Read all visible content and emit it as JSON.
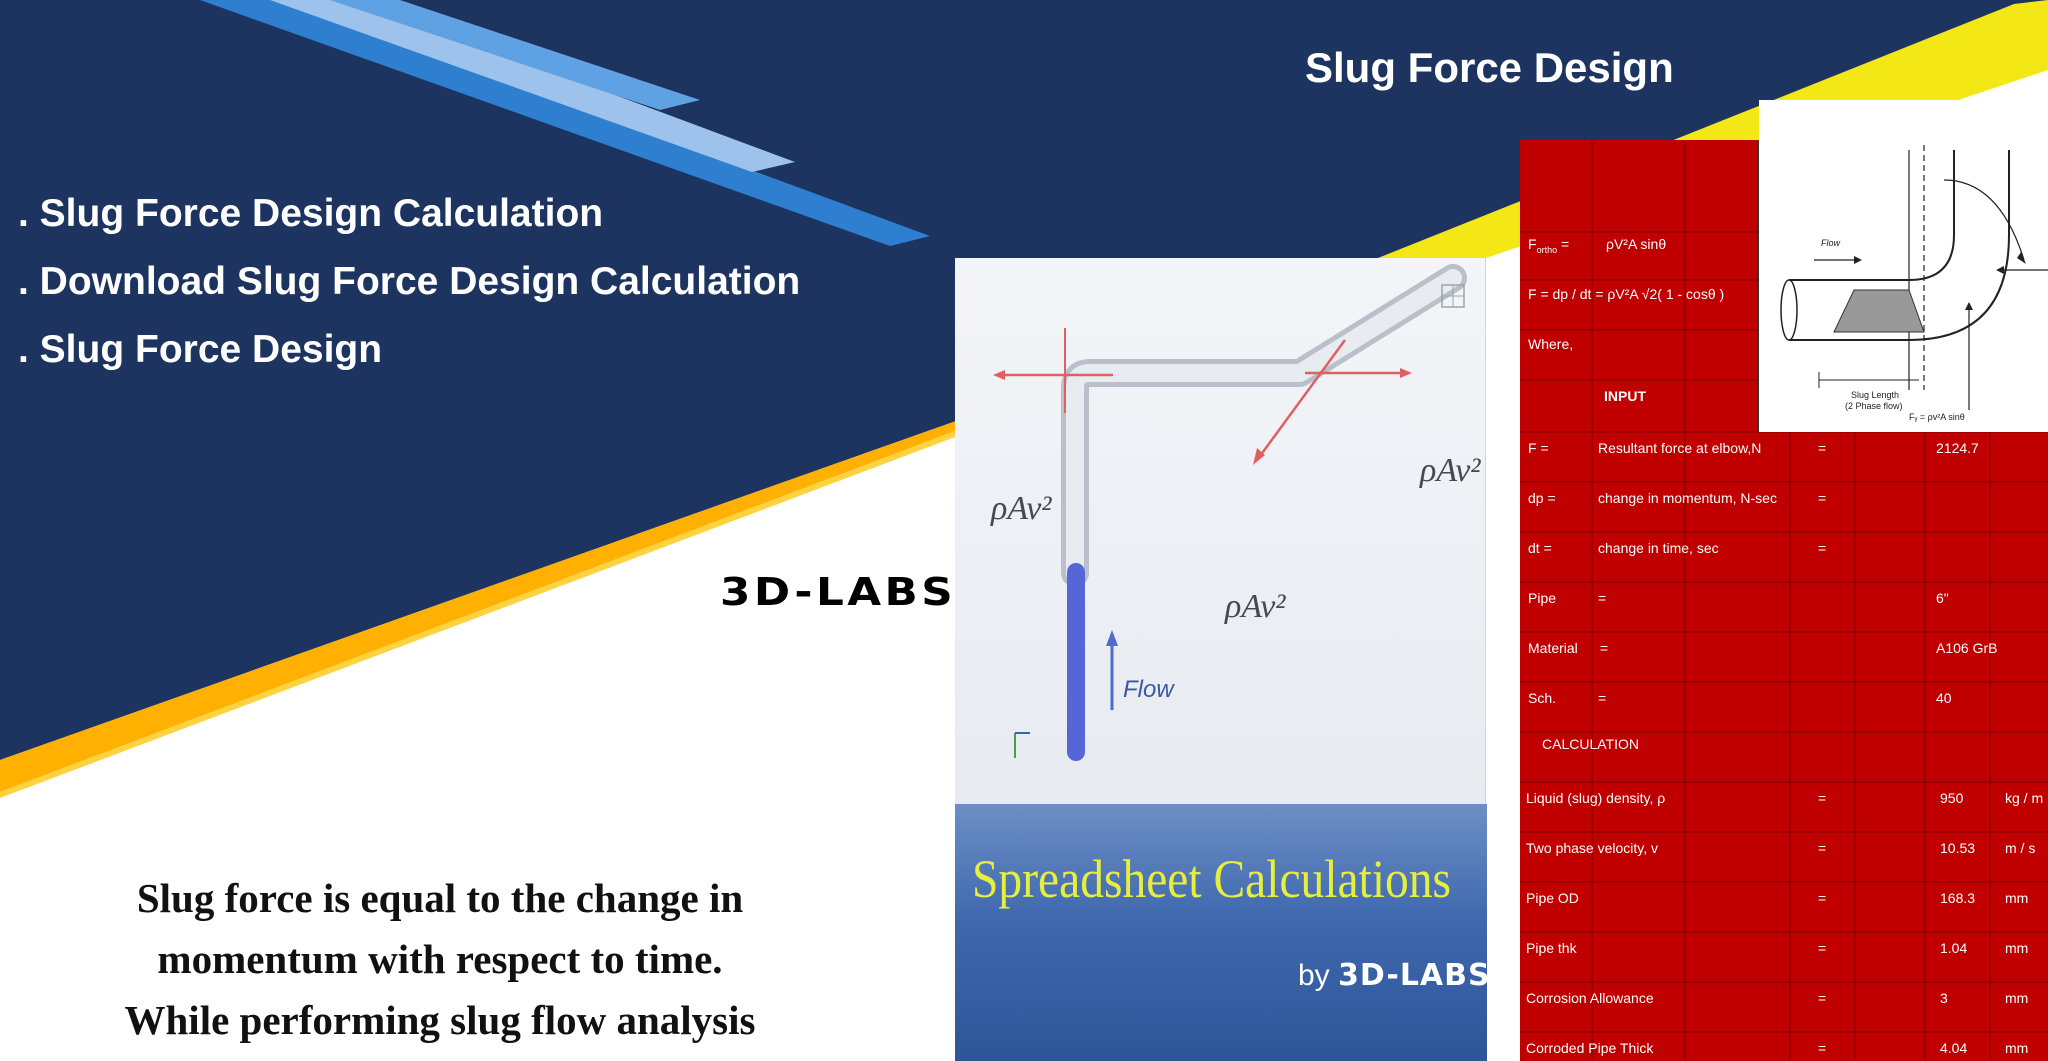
{
  "banner": {
    "title": "Slug Force Design",
    "bullets": [
      ". Slug Force Design Calculation",
      ". Download Slug Force Design Calculation",
      ". Slug Force Design"
    ],
    "logo": "3D-LABS",
    "description": [
      "Slug force is equal to the change in",
      "momentum with respect to time.",
      "While performing slug flow analysis"
    ]
  },
  "illustration": {
    "force_label": "ρAv²",
    "flow_label": "Flow"
  },
  "cover": {
    "title": "Spreadsheet Calculations",
    "by": "by",
    "brand": "3D-LABS"
  },
  "sheet": {
    "formulas": {
      "f_ortho_label": "F",
      "f_ortho_sub": "ortho",
      "f_ortho_eq": "=",
      "f_ortho_expr": "ρV²A sinθ",
      "f_total": "F = dp / dt = ρV²A √2( 1 - cosθ )",
      "where": "Where,"
    },
    "input_header": "INPUT",
    "input_rows": [
      {
        "sym": "F =",
        "desc": "Resultant force at elbow,N",
        "eq": "=",
        "val": "2124.7",
        "unit": ""
      },
      {
        "sym": "dp =",
        "desc": "change in momentum, N-sec",
        "eq": "=",
        "val": "",
        "unit": ""
      },
      {
        "sym": "dt =",
        "desc": "change in time, sec",
        "eq": "=",
        "val": "",
        "unit": ""
      },
      {
        "sym": "Pipe",
        "desc": "=",
        "eq": "",
        "val": "6\"",
        "unit": ""
      },
      {
        "sym": "Material",
        "desc": "=",
        "eq": "",
        "val": "A106 GrB",
        "unit": ""
      },
      {
        "sym": "Sch.",
        "desc": "=",
        "eq": "",
        "val": "40",
        "unit": ""
      }
    ],
    "calc_header": "CALCULATION",
    "calc_rows": [
      {
        "desc": "Liquid (slug) density, ρ",
        "eq": "=",
        "val": "950",
        "unit": "kg / m"
      },
      {
        "desc": "Two phase velocity, v",
        "eq": "=",
        "val": "10.53",
        "unit": "m / s"
      },
      {
        "desc": "Pipe OD",
        "eq": "=",
        "val": "168.3",
        "unit": "mm"
      },
      {
        "desc": "Pipe thk",
        "eq": "=",
        "val": "1.04",
        "unit": "mm"
      },
      {
        "desc": "Corrosion Allowance",
        "eq": "=",
        "val": "3",
        "unit": "mm"
      },
      {
        "desc": "Corroded Pipe Thick",
        "eq": "=",
        "val": "4.04",
        "unit": "mm"
      }
    ],
    "figure": {
      "flow": "Flow",
      "slug_length": "Slug Length",
      "slug_note": "(2 Phase flow)",
      "fy_label": "Fᵧ = ρv²A sinθ"
    }
  },
  "colors": {
    "navy": "#1d3461",
    "accent_blue": "#2f7fd0",
    "light_blue": "#9dc3ec",
    "yellow": "#f3e816",
    "orange": "#ffb000",
    "sheet_red": "#c00000"
  }
}
